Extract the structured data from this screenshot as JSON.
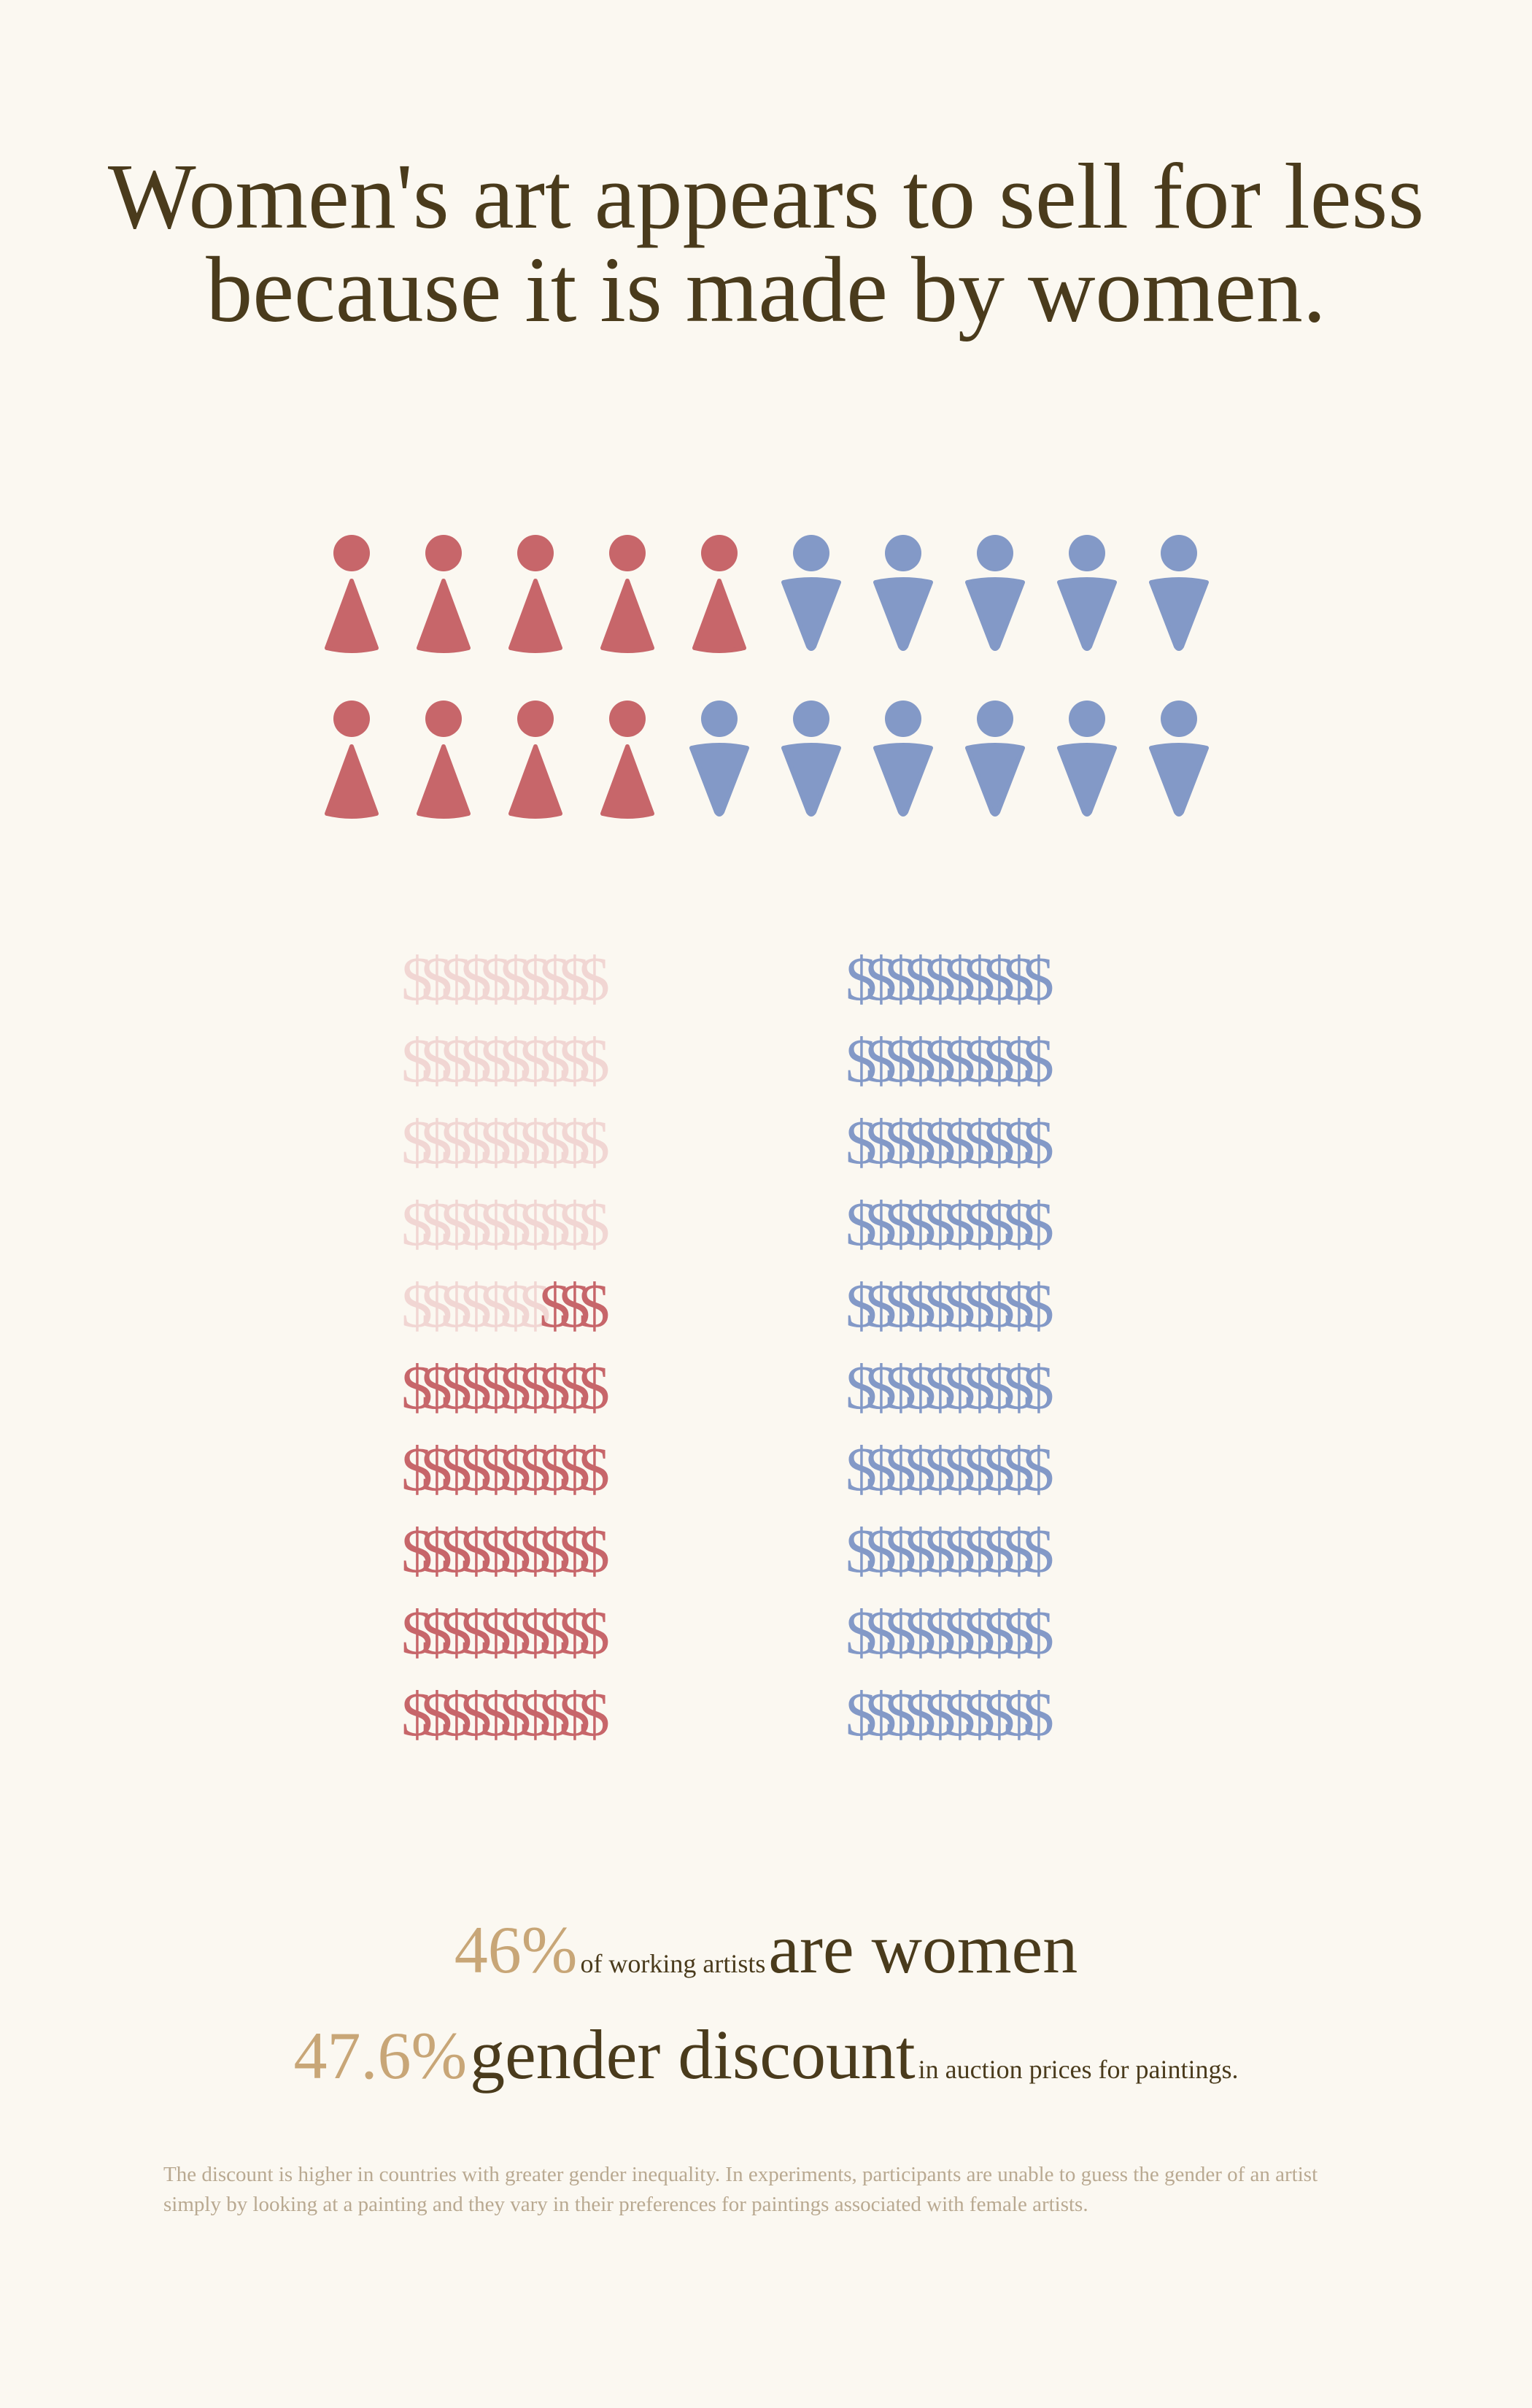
{
  "title": {
    "line1": "Women's art appears to sell for less",
    "line2": "because it is made by women."
  },
  "icons": {
    "woman-icon": "woman-figure-icon",
    "man-icon": "man-figure-icon"
  },
  "colors": {
    "women": "#c7666a",
    "women_faded": "#f1d6d3",
    "men": "#8399c7",
    "title": "#4a3b1c",
    "accent": "#c8a677",
    "footnote": "#b9a991",
    "background": "#fbf8f1"
  },
  "chart_data": [
    {
      "type": "pictogram",
      "title": "",
      "series": [
        {
          "name": "",
          "count": 9,
          "color": "#c7666a"
        },
        {
          "name": "",
          "count": 11,
          "color": "#8399c7"
        }
      ],
      "rows": [
        {
          "women": 5,
          "men": 5
        },
        {
          "women": 4,
          "men": 6
        }
      ]
    },
    {
      "type": "pictogram",
      "title": "",
      "symbol": "$",
      "rows_per_column": 10,
      "symbols_per_row": 10,
      "series": [
        {
          "name": "",
          "filled": 53,
          "faded": 47,
          "color": "#c7666a",
          "faded_color": "#f1d6d3"
        },
        {
          "name": "",
          "filled": 100,
          "faded": 0,
          "color": "#8399c7"
        }
      ]
    }
  ],
  "stats": {
    "stat1": {
      "value": "46%",
      "small_text": "of working artists",
      "big_text": "are women"
    },
    "stat2": {
      "value": "47.6%",
      "big_text": "gender discount",
      "small_text": "in auction prices for paintings."
    }
  },
  "footnote": "The discount is higher in countries with greater gender inequality. In experiments, participants are unable to guess the gender of an artist simply by looking at a painting and they vary in their preferences for paintings associated with female artists."
}
